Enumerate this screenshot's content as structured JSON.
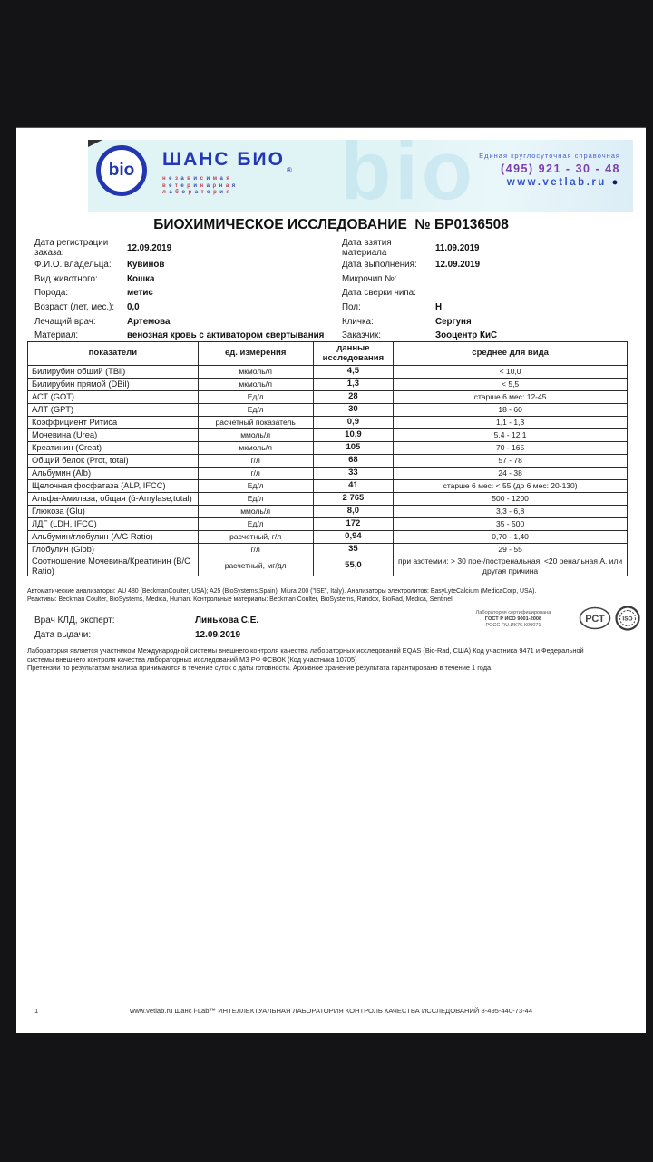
{
  "header": {
    "logo_circle_text": "bio",
    "brand": "ШАНС БИО",
    "registered": "®",
    "brand_sub_lines": [
      "независимая",
      "ветеринарная",
      "лаборатория"
    ],
    "watermark": "bio",
    "contact_line": "Единая круглосуточная справочная",
    "phone": "(495)  921 - 30 - 48",
    "website": "www.vetlab.ru",
    "website_bullet": "●"
  },
  "title": "БИОХИМИЧЕСКОЕ ИССЛЕДОВАНИЕ  № БР0136508",
  "info": {
    "left": [
      {
        "label": "Дата регистрации заказа:",
        "value": "12.09.2019"
      },
      {
        "label": "Ф.И.О. владельца:",
        "value": "Кувинов"
      },
      {
        "label": "Вид животного:",
        "value": "Кошка"
      },
      {
        "label": "Порода:",
        "value": "метис"
      },
      {
        "label": "Возраст (лет, мес.):",
        "value": "0,0"
      },
      {
        "label": "Лечащий врач:",
        "value": "Артемова"
      },
      {
        "label": "Материал:",
        "value": "венозная кровь с активатором свертывания"
      }
    ],
    "right": [
      {
        "label": "Дата взятия материала",
        "value": "11.09.2019"
      },
      {
        "label": "Дата выполнения:",
        "value": "12.09.2019"
      },
      {
        "label": "Микрочип №:",
        "value": ""
      },
      {
        "label": "Дата сверки чипа:",
        "value": ""
      },
      {
        "label": "Пол:",
        "value": "Н"
      },
      {
        "label": "Кличка:",
        "value": "Сергуня"
      },
      {
        "label": "Заказчик:",
        "value": "Зооцентр КиС"
      }
    ]
  },
  "table": {
    "headers": [
      "показатели",
      "ед. измерения",
      "данные исследования",
      "среднее для вида"
    ],
    "rows": [
      {
        "name": "Билирубин общий (TBil)",
        "unit": "мкмоль/л",
        "value": "4,5",
        "range": "< 10,0"
      },
      {
        "name": "Билирубин прямой (DBil)",
        "unit": "мкмоль/л",
        "value": "1,3",
        "range": "< 5,5"
      },
      {
        "name": "АСТ (GOT)",
        "unit": "Ед/л",
        "value": "28",
        "range": "старше 6 мес: 12-45"
      },
      {
        "name": "АЛТ (GPT)",
        "unit": "Ед/л",
        "value": "30",
        "range": "18 - 60"
      },
      {
        "name": "Коэффициент Ритиса",
        "unit": "расчетный показатель",
        "value": "0,9",
        "range": "1,1 - 1,3"
      },
      {
        "name": "Мочевина (Urea)",
        "unit": "ммоль/л",
        "value": "10,9",
        "range": "5,4 - 12,1"
      },
      {
        "name": "Креатинин (Creat)",
        "unit": "мкмоль/л",
        "value": "105",
        "range": "70 - 165"
      },
      {
        "name": "Общий белок (Prot, total)",
        "unit": "г/л",
        "value": "68",
        "range": "57 - 78"
      },
      {
        "name": "Альбумин (Alb)",
        "unit": "г/л",
        "value": "33",
        "range": "24 - 38"
      },
      {
        "name": "Щелочная фосфатаза (ALP, IFCC)",
        "unit": "Ед/л",
        "value": "41",
        "range": "старше 6 мес: < 55 (до 6 мес: 20-130)"
      },
      {
        "name": "Альфа-Амилаза, общая (ά-Amylase,total)",
        "unit": "Ед/л",
        "value": "2 765",
        "range": "500 - 1200"
      },
      {
        "name": "Глюкоза (Glu)",
        "unit": "ммоль/л",
        "value": "8,0",
        "range": "3,3 - 6,8"
      },
      {
        "name": "ЛДГ (LDH, IFCC)",
        "unit": "Ед/л",
        "value": "172",
        "range": "35 - 500"
      },
      {
        "name": "Альбумин/глобулин (A/G Ratio)",
        "unit": "расчетный, г/л",
        "value": "0,94",
        "range": "0,70 - 1,40"
      },
      {
        "name": "Глобулин (Glob)",
        "unit": "г/л",
        "value": "35",
        "range": "29 - 55"
      },
      {
        "name": "Соотношение Мочевина/Креатинин (B/C Ratio)",
        "unit": "расчетный, мг/дл",
        "value": "55,0",
        "range": "при азотемии: > 30 пре-/постренальная; <20 ренальная А. или другая причина"
      }
    ]
  },
  "analyzers_lines": [
    "Автоматические анализаторы: AU 480 (BeckmanCoulter, USA); A25 (BioSystems,Spain), Miura 200 (\"ISE\", Italy). Анализаторы электролитов: EasyLyteCalcium (MedicaCorp, USA).",
    "Реактивы: Beckman Coulter, BioSystems, Medica, Human. Контрольные материалы: Beckman Coulter, BioSystems, Randox, BioRad, Medica, Sentinel."
  ],
  "doctor": [
    {
      "label": "Врач КЛД, эксперт:",
      "value": "Линькова С.Е."
    },
    {
      "label": "Дата выдачи:",
      "value": "12.09.2019"
    }
  ],
  "certification": {
    "line1": "Лаборатория сертифицирована",
    "line2": "ГОСТ Р ИСО 9001-2008",
    "line3": "РОСС RU.ИК76.К00071",
    "rst_label": "РСТ",
    "iso_label": "ISO"
  },
  "disclaimer_lines": [
    "Лаборатория  является участником Международной  системы внешнего контроля качества лабораторных исследований  EQAS (Bio-Rad, США) Код участника 9471 и Федеральной",
    "системы внешнего контроля качества лабораторных исследований МЗ РФ ФСВОК (Код участника 10705)",
    "Претензии по результатам анализа принимаются в течение суток с даты готовности. Архивное хранение результата гарантировано в течение 1 года."
  ],
  "footer": {
    "page_number": "1",
    "text": "www.vetlab.ru Шанс i-Lab™ ИНТЕЛЛЕКТУАЛЬНАЯ ЛАБОРАТОРИЯ КОНТРОЛЬ КАЧЕСТВА ИССЛЕДОВАНИЙ 8-495-440-73-44"
  },
  "colors": {
    "surround_black": "#141416",
    "band_cyan": "#e0f3f5",
    "brand_blue": "#2438b6",
    "phone_purple": "#7d3cae",
    "link_blue": "#3753c8",
    "sub_red": "#c43b53",
    "sub_blue": "#3b4ab8"
  }
}
